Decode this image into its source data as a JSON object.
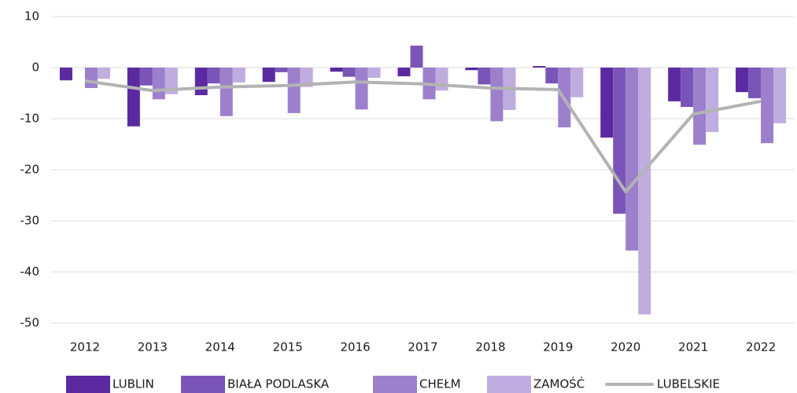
{
  "chart_data": {
    "type": "bar",
    "categories": [
      "2012",
      "2013",
      "2014",
      "2015",
      "2016",
      "2017",
      "2018",
      "2019",
      "2020",
      "2021",
      "2022"
    ],
    "series": [
      {
        "name": "LUBLIN",
        "color": "#5b2aa0",
        "values": [
          -2.5,
          -11.5,
          -5.4,
          -2.8,
          -0.8,
          -1.7,
          -0.5,
          0.3,
          -13.7,
          -6.6,
          -4.8
        ]
      },
      {
        "name": "BIAŁA PODLASKA",
        "color": "#7a55b8",
        "values": [
          0,
          -3.5,
          -3.1,
          -0.9,
          -1.8,
          4.3,
          -3.3,
          -3.1,
          -28.6,
          -7.7,
          -6.0
        ]
      },
      {
        "name": "CHEŁM",
        "color": "#9c80cc",
        "values": [
          -4.0,
          -6.2,
          -9.5,
          -8.9,
          -8.2,
          -6.2,
          -10.5,
          -11.7,
          -35.8,
          -15.1,
          -14.8
        ]
      },
      {
        "name": "ZAMOŚĆ",
        "color": "#c0addf",
        "values": [
          -2.2,
          -5.2,
          -2.9,
          -3.8,
          -2.0,
          -4.5,
          -8.3,
          -5.8,
          -48.3,
          -12.6,
          -10.9
        ]
      },
      {
        "name": "LUBELSKIE",
        "color": "#b3b3b3",
        "type": "line",
        "values": [
          -2.6,
          -4.5,
          -3.8,
          -3.5,
          -2.8,
          -3.2,
          -4.0,
          -4.3,
          -24.3,
          -9.1,
          -6.6
        ]
      }
    ],
    "ylim": [
      -50,
      10
    ],
    "yticks": [
      -50,
      -40,
      -30,
      -20,
      -10,
      0,
      10
    ],
    "grid": true,
    "legend": "bottom"
  }
}
